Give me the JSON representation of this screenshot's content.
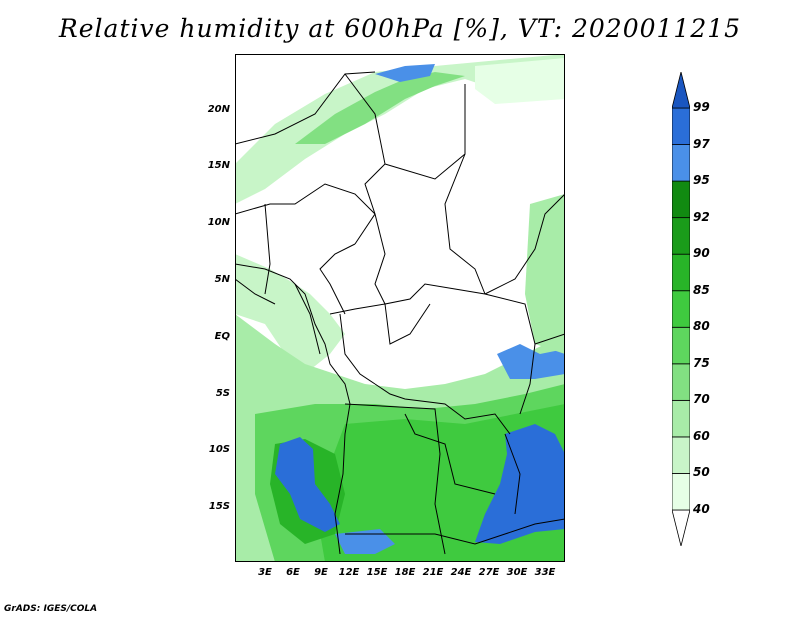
{
  "title": "Relative humidity at 600hPa [%], VT: 2020011215",
  "credit": "GrADS: IGES/COLA",
  "latitude_labels": [
    "20N",
    "15N",
    "10N",
    "5N",
    "EQ",
    "5S",
    "10S",
    "15S"
  ],
  "longitude_labels": [
    "3E",
    "6E",
    "9E",
    "12E",
    "15E",
    "18E",
    "21E",
    "24E",
    "27E",
    "30E",
    "33E"
  ],
  "colorbar": {
    "labels": [
      "40",
      "50",
      "60",
      "70",
      "75",
      "80",
      "85",
      "90",
      "92",
      "95",
      "97",
      "99"
    ],
    "colors": [
      "#ffffff",
      "#e6ffe6",
      "#c8f5c8",
      "#a8eca8",
      "#82e082",
      "#5ed65e",
      "#3fca3f",
      "#28b428",
      "#1a9c1a",
      "#118a11",
      "#4a90e8",
      "#2a6ed8",
      "#1a56c0"
    ]
  }
}
